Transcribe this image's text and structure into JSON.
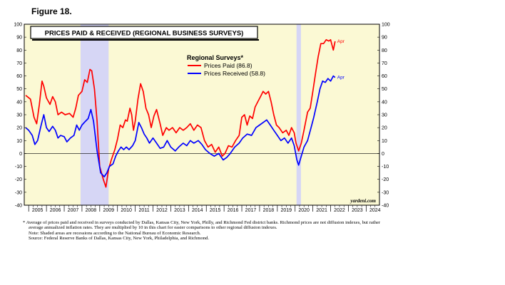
{
  "figure_label": "Figure 18.",
  "footnotes": {
    "asterisk": "* Average of prices paid and received in surveys conducted by Dallas, Kansas City, New York, Philly, and Richmond Fed district banks. Richmond prices are not diffusion indexes, but rather average annualized inflation rates. They are multiplied by 10 in this chart for easier comparisons to other regional diffusion indexes.",
    "note": "Note: Shaded areas are recessions according to the National Bureau of Economic Research.",
    "source": "Source: Federal Reserve Banks of Dallas, Kansas City, New York, Philadelphia, and Richmond."
  },
  "chart_data": {
    "type": "line",
    "title": "PRICES PAID & RECEIVED (REGIONAL BUSINESS SURVEYS)",
    "legend_title": "Regional Surveys*",
    "legend_position": "top-center",
    "watermark": "yardeni.com",
    "xlim": [
      2004.75,
      2024.75
    ],
    "ylim": [
      -40,
      100
    ],
    "y_ticks": [
      -40,
      -30,
      -20,
      -10,
      0,
      10,
      20,
      30,
      40,
      50,
      60,
      70,
      80,
      90,
      100
    ],
    "x_tick_labels": [
      "2005",
      "2006",
      "2007",
      "2008",
      "2009",
      "2010",
      "2011",
      "2012",
      "2013",
      "2014",
      "2015",
      "2016",
      "2017",
      "2018",
      "2019",
      "2020",
      "2021",
      "2022",
      "2023",
      "2024"
    ],
    "recessions": [
      [
        2007.92,
        2009.5
      ],
      [
        2020.08,
        2020.33
      ]
    ],
    "background_color": "#fbf9d4",
    "recession_color": "#d6d6f5",
    "series": [
      {
        "name": "Prices Paid (86.8)",
        "color": "#ff0000",
        "end_label": "Apr",
        "points": [
          [
            2004.83,
            45
          ],
          [
            2005.1,
            42
          ],
          [
            2005.3,
            28
          ],
          [
            2005.45,
            23
          ],
          [
            2005.6,
            38
          ],
          [
            2005.75,
            56
          ],
          [
            2005.85,
            52
          ],
          [
            2006.0,
            43
          ],
          [
            2006.2,
            38
          ],
          [
            2006.35,
            44
          ],
          [
            2006.5,
            40
          ],
          [
            2006.65,
            30
          ],
          [
            2006.85,
            32
          ],
          [
            2007.05,
            30
          ],
          [
            2007.3,
            31
          ],
          [
            2007.5,
            28
          ],
          [
            2007.65,
            35
          ],
          [
            2007.8,
            45
          ],
          [
            2008.0,
            48
          ],
          [
            2008.15,
            57
          ],
          [
            2008.3,
            55
          ],
          [
            2008.45,
            65
          ],
          [
            2008.55,
            64
          ],
          [
            2008.7,
            50
          ],
          [
            2008.85,
            25
          ],
          [
            2009.0,
            -10
          ],
          [
            2009.2,
            -20
          ],
          [
            2009.35,
            -26
          ],
          [
            2009.5,
            -12
          ],
          [
            2009.65,
            -5
          ],
          [
            2009.85,
            3
          ],
          [
            2010.0,
            11
          ],
          [
            2010.15,
            22
          ],
          [
            2010.3,
            20
          ],
          [
            2010.45,
            26
          ],
          [
            2010.55,
            25
          ],
          [
            2010.7,
            35
          ],
          [
            2010.8,
            30
          ],
          [
            2010.9,
            18
          ],
          [
            2011.0,
            25
          ],
          [
            2011.15,
            42
          ],
          [
            2011.3,
            54
          ],
          [
            2011.45,
            48
          ],
          [
            2011.6,
            35
          ],
          [
            2011.75,
            30
          ],
          [
            2011.9,
            20
          ],
          [
            2012.05,
            29
          ],
          [
            2012.2,
            34
          ],
          [
            2012.4,
            23
          ],
          [
            2012.55,
            14
          ],
          [
            2012.75,
            20
          ],
          [
            2012.9,
            18
          ],
          [
            2013.1,
            20
          ],
          [
            2013.3,
            16
          ],
          [
            2013.5,
            20
          ],
          [
            2013.7,
            18
          ],
          [
            2013.9,
            20
          ],
          [
            2014.1,
            23
          ],
          [
            2014.3,
            18
          ],
          [
            2014.5,
            22
          ],
          [
            2014.7,
            20
          ],
          [
            2014.9,
            10
          ],
          [
            2015.1,
            5
          ],
          [
            2015.3,
            7
          ],
          [
            2015.5,
            1
          ],
          [
            2015.7,
            5
          ],
          [
            2015.9,
            -2
          ],
          [
            2016.05,
            0
          ],
          [
            2016.25,
            6
          ],
          [
            2016.45,
            5
          ],
          [
            2016.65,
            10
          ],
          [
            2016.85,
            14
          ],
          [
            2017.0,
            28
          ],
          [
            2017.15,
            30
          ],
          [
            2017.3,
            22
          ],
          [
            2017.45,
            29
          ],
          [
            2017.6,
            27
          ],
          [
            2017.75,
            36
          ],
          [
            2017.9,
            40
          ],
          [
            2018.05,
            44
          ],
          [
            2018.2,
            48
          ],
          [
            2018.35,
            46
          ],
          [
            2018.5,
            48
          ],
          [
            2018.65,
            40
          ],
          [
            2018.8,
            30
          ],
          [
            2018.95,
            22
          ],
          [
            2019.1,
            20
          ],
          [
            2019.3,
            16
          ],
          [
            2019.5,
            18
          ],
          [
            2019.65,
            14
          ],
          [
            2019.8,
            20
          ],
          [
            2019.95,
            16
          ],
          [
            2020.05,
            8
          ],
          [
            2020.2,
            2
          ],
          [
            2020.35,
            8
          ],
          [
            2020.5,
            18
          ],
          [
            2020.7,
            32
          ],
          [
            2020.85,
            35
          ],
          [
            2021.0,
            48
          ],
          [
            2021.15,
            62
          ],
          [
            2021.3,
            75
          ],
          [
            2021.45,
            85
          ],
          [
            2021.6,
            85
          ],
          [
            2021.75,
            88
          ],
          [
            2021.9,
            87
          ],
          [
            2022.0,
            88
          ],
          [
            2022.15,
            80
          ],
          [
            2022.25,
            86.8
          ]
        ]
      },
      {
        "name": "Prices Received (58.8)",
        "color": "#0000ff",
        "end_label": "Apr",
        "points": [
          [
            2004.83,
            20
          ],
          [
            2005.0,
            18
          ],
          [
            2005.2,
            14
          ],
          [
            2005.35,
            7
          ],
          [
            2005.5,
            10
          ],
          [
            2005.7,
            22
          ],
          [
            2005.85,
            30
          ],
          [
            2006.0,
            20
          ],
          [
            2006.15,
            17
          ],
          [
            2006.35,
            21
          ],
          [
            2006.5,
            18
          ],
          [
            2006.65,
            12
          ],
          [
            2006.8,
            14
          ],
          [
            2007.0,
            13
          ],
          [
            2007.15,
            9
          ],
          [
            2007.35,
            12
          ],
          [
            2007.55,
            14
          ],
          [
            2007.7,
            22
          ],
          [
            2007.85,
            18
          ],
          [
            2008.0,
            22
          ],
          [
            2008.2,
            25
          ],
          [
            2008.35,
            27
          ],
          [
            2008.5,
            34
          ],
          [
            2008.65,
            25
          ],
          [
            2008.85,
            2
          ],
          [
            2009.05,
            -15
          ],
          [
            2009.25,
            -18
          ],
          [
            2009.4,
            -15
          ],
          [
            2009.55,
            -10
          ],
          [
            2009.75,
            -8
          ],
          [
            2009.9,
            -2
          ],
          [
            2010.05,
            2
          ],
          [
            2010.2,
            5
          ],
          [
            2010.35,
            3
          ],
          [
            2010.5,
            5
          ],
          [
            2010.65,
            3
          ],
          [
            2010.85,
            6
          ],
          [
            2011.0,
            10
          ],
          [
            2011.2,
            24
          ],
          [
            2011.35,
            20
          ],
          [
            2011.5,
            15
          ],
          [
            2011.65,
            12
          ],
          [
            2011.8,
            8
          ],
          [
            2012.0,
            12
          ],
          [
            2012.2,
            8
          ],
          [
            2012.4,
            4
          ],
          [
            2012.6,
            5
          ],
          [
            2012.8,
            10
          ],
          [
            2013.0,
            5
          ],
          [
            2013.25,
            2
          ],
          [
            2013.45,
            5
          ],
          [
            2013.7,
            8
          ],
          [
            2013.9,
            6
          ],
          [
            2014.1,
            10
          ],
          [
            2014.3,
            8
          ],
          [
            2014.55,
            10
          ],
          [
            2014.75,
            7
          ],
          [
            2014.95,
            3
          ],
          [
            2015.2,
            0
          ],
          [
            2015.45,
            -2
          ],
          [
            2015.7,
            0
          ],
          [
            2015.95,
            -5
          ],
          [
            2016.15,
            -3
          ],
          [
            2016.35,
            0
          ],
          [
            2016.6,
            5
          ],
          [
            2016.85,
            8
          ],
          [
            2017.05,
            12
          ],
          [
            2017.3,
            15
          ],
          [
            2017.55,
            14
          ],
          [
            2017.8,
            20
          ],
          [
            2018.0,
            22
          ],
          [
            2018.2,
            24
          ],
          [
            2018.4,
            26
          ],
          [
            2018.6,
            22
          ],
          [
            2018.8,
            18
          ],
          [
            2019.0,
            14
          ],
          [
            2019.2,
            10
          ],
          [
            2019.4,
            12
          ],
          [
            2019.6,
            8
          ],
          [
            2019.8,
            12
          ],
          [
            2019.95,
            6
          ],
          [
            2020.1,
            -5
          ],
          [
            2020.2,
            -9
          ],
          [
            2020.35,
            -2
          ],
          [
            2020.5,
            5
          ],
          [
            2020.7,
            10
          ],
          [
            2020.9,
            20
          ],
          [
            2021.05,
            28
          ],
          [
            2021.25,
            40
          ],
          [
            2021.4,
            50
          ],
          [
            2021.55,
            56
          ],
          [
            2021.7,
            55
          ],
          [
            2021.85,
            58
          ],
          [
            2022.0,
            56
          ],
          [
            2022.15,
            60
          ],
          [
            2022.25,
            58.8
          ]
        ]
      }
    ]
  }
}
